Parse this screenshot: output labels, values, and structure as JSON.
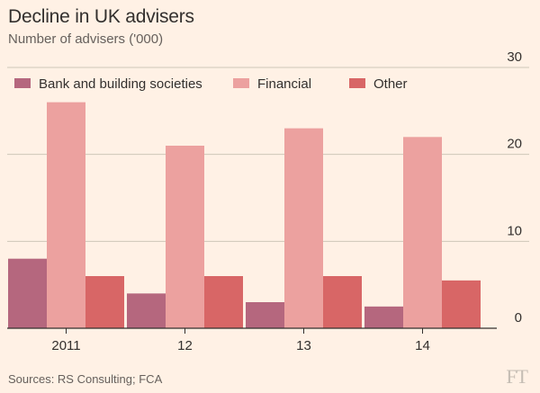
{
  "title": "Decline in UK advisers",
  "subtitle": "Number of advisers ('000)",
  "source": "Sources: RS Consulting; FCA",
  "logo": "FT",
  "colors": {
    "background": "#fff1e5",
    "bank": "#b5677e",
    "financial": "#eca19f",
    "other": "#d86666",
    "gridline": "#cec6b9",
    "axis": "#33302e"
  },
  "chart_data": {
    "type": "bar",
    "categories": [
      "2011",
      "12",
      "13",
      "14"
    ],
    "series": [
      {
        "name": "Bank and building societies",
        "values": [
          8,
          4,
          3,
          2.5
        ],
        "color": "#b5677e"
      },
      {
        "name": "Financial",
        "values": [
          26,
          21,
          23,
          22
        ],
        "color": "#eca19f"
      },
      {
        "name": "Other",
        "values": [
          6,
          6,
          6,
          5.5
        ],
        "color": "#d86666"
      }
    ],
    "ylim": [
      0,
      30
    ],
    "yticks": [
      0,
      10,
      20,
      30
    ],
    "y_axis_side": "right",
    "grid": true,
    "legend_position": "top"
  }
}
